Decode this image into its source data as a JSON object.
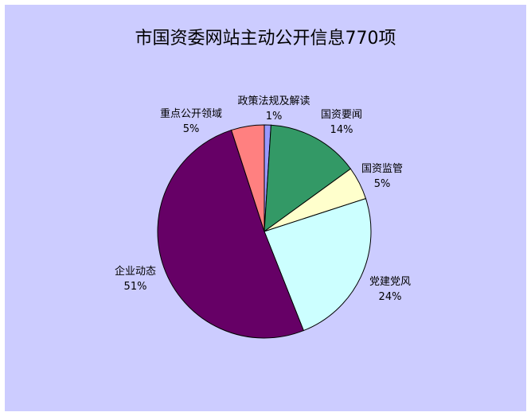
{
  "chart_data": {
    "type": "pie",
    "title": "市国资委网站主动公开信息770项",
    "start": "12 o'clock, clockwise",
    "background": "#ccccff",
    "slices": [
      {
        "label": "政策法规及解读",
        "value": 1,
        "display": "1%",
        "color": "#9999ff"
      },
      {
        "label": "国资要闻",
        "value": 14,
        "display": "14%",
        "color": "#339966"
      },
      {
        "label": "国资监管",
        "value": 5,
        "display": "5%",
        "color": "#ffffcc"
      },
      {
        "label": "党建党风",
        "value": 24,
        "display": "24%",
        "color": "#ccffff"
      },
      {
        "label": "企业动态",
        "value": 51,
        "display": "51%",
        "color": "#660066"
      },
      {
        "label": "重点公开领域",
        "value": 5,
        "display": "5%",
        "color": "#ff8080"
      }
    ]
  }
}
